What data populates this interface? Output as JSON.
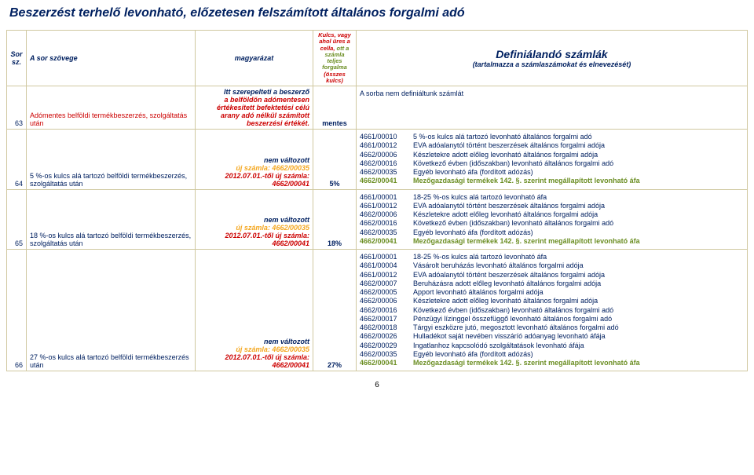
{
  "title": "Beszerzést terhelő levonható, előzetesen felszámított általános forgalmi adó",
  "headers": {
    "sor": "Sor sz.",
    "szoveg": "A sor szövege",
    "magy": "magyarázat",
    "kulcs_red_pre": "Kulcs, vagy ahol üres a cella,",
    "kulcs_green": " ott a számla teljes forgalma",
    "kulcs_red_post": " (összes kulcs)",
    "def_main": "Definiálandó számlák",
    "def_sub": "(tartalmazza a számlaszámokat és elnevezését)"
  },
  "rows": [
    {
      "num": "63",
      "szoveg": "Adómentes belföldi  termékbeszerzés, szolgáltatás után",
      "szoveg_color": "#cc0000",
      "magy_lines": [
        {
          "text": "Itt szerepelteti a beszerző ",
          "color": "#002060"
        },
        {
          "text": "a belföldön adómentesen értékesített befektetési célú arany adó nélkül számított beszerzési értékét.",
          "color": "#cc0000"
        }
      ],
      "kulcs": "mentes",
      "def_lines": [
        {
          "code": "",
          "text": "A sorba nem definiáltunk számlát",
          "color": "#002060"
        }
      ]
    },
    {
      "num": "64",
      "szoveg": "5 %-os kulcs alá tartozó belföldi termékbeszerzés, szolgáltatás után",
      "szoveg_color": "#002060",
      "magy_lines": [
        {
          "text": "nem változott",
          "color": "#002060"
        },
        {
          "text": "új számla: 4662/00035",
          "color": "#f4a720"
        },
        {
          "text": "2012.07.01.-től új számla: 4662/00041",
          "color": "#cc0000"
        }
      ],
      "kulcs": "5%",
      "def_lines": [
        {
          "code": "4661/00010",
          "text": "5 %-os kulcs alá tartozó levonható általános forgalmi adó",
          "color": "#002060"
        },
        {
          "code": "4661/00012",
          "text": "EVA adóalanytól történt beszerzések általános forgalmi adója",
          "color": "#002060"
        },
        {
          "code": "4662/00006",
          "text": "Készletekre adott előleg levonható általános forgalmi adója",
          "color": "#002060"
        },
        {
          "code": "4662/00016",
          "text": "Következő évben (időszakban) levonható általános forgalmi adó",
          "color": "#002060"
        },
        {
          "code": "4662/00035",
          "text": "Egyéb levonható áfa (fordított adózás)",
          "color": "#002060"
        },
        {
          "code": "4662/00041",
          "text": "Mezőgazdasági termékek 142. §. szerint megállapított levonható áfa",
          "color": "#6b8e23",
          "green": true
        }
      ]
    },
    {
      "num": "65",
      "szoveg": "18 %-os kulcs alá tartozó belföldi termékbeszerzés, szolgáltatás után",
      "szoveg_color": "#002060",
      "magy_lines": [
        {
          "text": "nem változott",
          "color": "#002060"
        },
        {
          "text": "új számla: 4662/00035",
          "color": "#f4a720"
        },
        {
          "text": "2012.07.01.-től új számla: 4662/00041",
          "color": "#cc0000"
        }
      ],
      "kulcs": "18%",
      "def_lines": [
        {
          "code": "4661/00001",
          "text": "18-25 %-os kulcs alá tartozó levonható áfa",
          "color": "#002060"
        },
        {
          "code": "4661/00012",
          "text": "EVA adóalanytól történt beszerzések általános forgalmi adója",
          "color": "#002060"
        },
        {
          "code": "4662/00006",
          "text": "Készletekre adott előleg levonható általános forgalmi adója",
          "color": "#002060"
        },
        {
          "code": "4662/00016",
          "text": "Következő évben (időszakban) levonható általános forgalmi adó",
          "color": "#002060"
        },
        {
          "code": "4662/00035",
          "text": "Egyéb levonható áfa (fordított adózás)",
          "color": "#002060"
        },
        {
          "code": "4662/00041",
          "text": "Mezőgazdasági termékek 142. §. szerint megállapított levonható áfa",
          "color": "#6b8e23",
          "green": true
        }
      ]
    },
    {
      "num": "66",
      "szoveg": "27 %-os kulcs alá tartozó belföldi termékbeszerzés után",
      "szoveg_color": "#002060",
      "magy_lines": [
        {
          "text": "nem változott",
          "color": "#002060"
        },
        {
          "text": "új számla: 4662/00035",
          "color": "#f4a720"
        },
        {
          "text": "2012.07.01.-től új számla: 4662/00041",
          "color": "#cc0000"
        }
      ],
      "kulcs": "27%",
      "def_lines": [
        {
          "code": "4661/00001",
          "text": "18-25 %-os kulcs alá tartozó levonható áfa",
          "color": "#002060"
        },
        {
          "code": "4661/00004",
          "text": "Vásárolt beruházás levonható általános forgalmi adója",
          "color": "#002060"
        },
        {
          "code": "4661/00012",
          "text": "EVA adóalanytól történt beszerzések általános forgalmi adója",
          "color": "#002060"
        },
        {
          "code": "4662/00007",
          "text": "Beruházásra adott előleg levonható általános forgalmi adója",
          "color": "#002060"
        },
        {
          "code": "4662/00005",
          "text": "Apport levonható általános forgalmi adója",
          "color": "#002060"
        },
        {
          "code": "4662/00006",
          "text": "Készletekre adott előleg levonható általános forgalmi adója",
          "color": "#002060"
        },
        {
          "code": "4662/00016",
          "text": "Következő évben (időszakban) levonható általános forgalmi adó",
          "color": "#002060"
        },
        {
          "code": "4662/00017",
          "text": "Pénzügyi lízinggel összefüggő levonható általános forgalmi adó",
          "color": "#002060"
        },
        {
          "code": "4662/00018",
          "text": "Tárgyi eszközre jutó, megosztott levonható általános forgalmi adó",
          "color": "#002060"
        },
        {
          "code": "4662/00026",
          "text": "Hulladékot saját nevében visszáríó adóanyag levonható áfája",
          "color": "#002060"
        },
        {
          "code": "4662/00029",
          "text": "Ingatlanhoz kapcsolódó szolgáltatások levonható áfája",
          "color": "#002060"
        },
        {
          "code": "4662/00035",
          "text": "Egyéb levonható áfa (fordított adózás)",
          "color": "#002060"
        },
        {
          "code": "4662/00041",
          "text": "Mezőgazdasági termékek 142. §. szerint megállapított levonható áfa",
          "color": "#6b8e23",
          "green": true
        }
      ]
    }
  ],
  "page_num": "6"
}
